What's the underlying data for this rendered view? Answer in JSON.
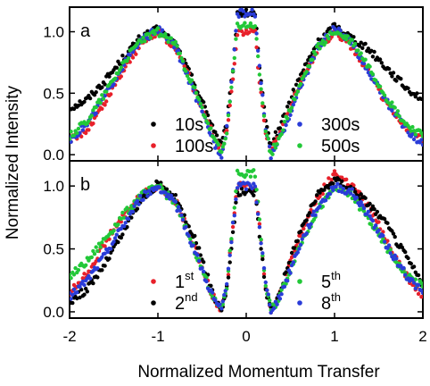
{
  "chart_data": [
    {
      "type": "scatter",
      "panel": "a",
      "xlabel": "Normalized Momentum Transfer",
      "ylabel": "Normalized Intensity",
      "xlim": [
        -2,
        2
      ],
      "ylim": [
        -0.05,
        1.2
      ],
      "xticks": [
        "-2",
        "-1",
        "0",
        "1",
        "2"
      ],
      "yticks": [
        "0.0",
        "0.5",
        "1.0"
      ],
      "series": [
        {
          "name": "10s",
          "color": "#000000",
          "x": [
            -2.0,
            -1.8,
            -1.6,
            -1.4,
            -1.2,
            -1.0,
            -0.8,
            -0.6,
            -0.45,
            -0.35,
            -0.28,
            -0.22,
            -0.15,
            -0.1,
            0.1,
            0.15,
            0.22,
            0.28,
            0.35,
            0.45,
            0.6,
            0.8,
            1.0,
            1.2,
            1.4,
            1.6,
            1.8,
            2.0
          ],
          "y": [
            0.38,
            0.45,
            0.6,
            0.78,
            0.95,
            1.02,
            0.9,
            0.6,
            0.35,
            0.18,
            0.08,
            0.25,
            0.7,
            1.15,
            1.15,
            0.7,
            0.25,
            0.08,
            0.18,
            0.35,
            0.62,
            0.9,
            1.05,
            0.95,
            0.85,
            0.7,
            0.55,
            0.45
          ]
        },
        {
          "name": "100s",
          "color": "#e8202a",
          "x": [
            -2.0,
            -1.8,
            -1.6,
            -1.4,
            -1.2,
            -1.0,
            -0.8,
            -0.6,
            -0.45,
            -0.35,
            -0.28,
            -0.22,
            -0.15,
            -0.1,
            0.1,
            0.15,
            0.22,
            0.28,
            0.35,
            0.45,
            0.6,
            0.8,
            1.0,
            1.2,
            1.4,
            1.6,
            1.8,
            2.0
          ],
          "y": [
            0.12,
            0.2,
            0.42,
            0.68,
            0.9,
            1.0,
            0.88,
            0.55,
            0.3,
            0.12,
            0.03,
            0.2,
            0.6,
            1.0,
            1.0,
            0.6,
            0.2,
            0.03,
            0.12,
            0.3,
            0.56,
            0.85,
            1.0,
            0.88,
            0.65,
            0.4,
            0.22,
            0.12
          ]
        },
        {
          "name": "300s",
          "color": "#2a3cd8",
          "x": [
            -2.0,
            -1.8,
            -1.6,
            -1.4,
            -1.2,
            -1.0,
            -0.8,
            -0.6,
            -0.45,
            -0.35,
            -0.28,
            -0.22,
            -0.15,
            -0.1,
            0.1,
            0.15,
            0.22,
            0.28,
            0.35,
            0.45,
            0.6,
            0.8,
            1.0,
            1.2,
            1.4,
            1.6,
            1.8,
            2.0
          ],
          "y": [
            0.12,
            0.25,
            0.48,
            0.72,
            0.92,
            1.02,
            0.88,
            0.52,
            0.25,
            0.08,
            0.0,
            0.22,
            0.7,
            1.15,
            1.15,
            0.7,
            0.22,
            0.0,
            0.08,
            0.25,
            0.52,
            0.86,
            1.03,
            0.9,
            0.66,
            0.42,
            0.22,
            0.08
          ]
        },
        {
          "name": "500s",
          "color": "#22c838",
          "x": [
            -2.0,
            -1.8,
            -1.6,
            -1.4,
            -1.2,
            -1.0,
            -0.8,
            -0.6,
            -0.45,
            -0.35,
            -0.28,
            -0.22,
            -0.15,
            -0.1,
            0.1,
            0.15,
            0.22,
            0.28,
            0.35,
            0.45,
            0.6,
            0.8,
            1.0,
            1.2,
            1.4,
            1.6,
            1.8,
            2.0
          ],
          "y": [
            0.15,
            0.28,
            0.5,
            0.74,
            0.93,
            1.0,
            0.9,
            0.55,
            0.28,
            0.1,
            0.01,
            0.2,
            0.65,
            1.05,
            1.05,
            0.65,
            0.2,
            0.01,
            0.1,
            0.28,
            0.55,
            0.86,
            1.0,
            0.92,
            0.7,
            0.45,
            0.25,
            0.15
          ]
        }
      ],
      "legend": [
        {
          "label": "10s",
          "color": "#000000",
          "position": "bottom-left-upper"
        },
        {
          "label": "100s",
          "color": "#e8202a",
          "position": "bottom-left-lower"
        },
        {
          "label": "300s",
          "color": "#2a3cd8",
          "position": "bottom-right-upper"
        },
        {
          "label": "500s",
          "color": "#22c838",
          "position": "bottom-right-lower"
        }
      ]
    },
    {
      "type": "scatter",
      "panel": "b",
      "xlabel": "Normalized Momentum Transfer",
      "ylabel": "Normalized Intensity",
      "xlim": [
        -2,
        2
      ],
      "ylim": [
        -0.05,
        1.2
      ],
      "xticks": [
        "-2",
        "-1",
        "0",
        "1",
        "2"
      ],
      "yticks": [
        "0.0",
        "0.5",
        "1.0"
      ],
      "series": [
        {
          "name": "1st",
          "color": "#e8202a",
          "x": [
            -2.0,
            -1.8,
            -1.6,
            -1.4,
            -1.2,
            -1.0,
            -0.8,
            -0.6,
            -0.45,
            -0.35,
            -0.28,
            -0.22,
            -0.15,
            -0.1,
            0.1,
            0.15,
            0.22,
            0.28,
            0.35,
            0.45,
            0.6,
            0.8,
            1.0,
            1.2,
            1.4,
            1.6,
            1.8,
            2.0
          ],
          "y": [
            0.15,
            0.3,
            0.55,
            0.75,
            0.92,
            1.0,
            0.88,
            0.55,
            0.25,
            0.08,
            0.02,
            0.2,
            0.7,
            1.0,
            1.0,
            0.7,
            0.2,
            0.02,
            0.08,
            0.28,
            0.58,
            0.9,
            1.1,
            1.0,
            0.82,
            0.55,
            0.3,
            0.12
          ]
        },
        {
          "name": "2nd",
          "color": "#000000",
          "x": [
            -2.0,
            -1.8,
            -1.6,
            -1.4,
            -1.2,
            -1.0,
            -0.8,
            -0.6,
            -0.45,
            -0.35,
            -0.28,
            -0.22,
            -0.15,
            -0.1,
            0.1,
            0.15,
            0.22,
            0.28,
            0.35,
            0.45,
            0.6,
            0.8,
            1.0,
            1.2,
            1.4,
            1.6,
            1.8,
            2.0
          ],
          "y": [
            0.08,
            0.18,
            0.38,
            0.62,
            0.88,
            1.02,
            0.9,
            0.62,
            0.3,
            0.1,
            0.02,
            0.18,
            0.62,
            0.95,
            0.95,
            0.62,
            0.18,
            0.02,
            0.1,
            0.32,
            0.62,
            0.92,
            1.05,
            0.98,
            0.85,
            0.68,
            0.45,
            0.22
          ]
        },
        {
          "name": "5th",
          "color": "#22c838",
          "x": [
            -2.0,
            -1.8,
            -1.6,
            -1.4,
            -1.2,
            -1.0,
            -0.8,
            -0.6,
            -0.45,
            -0.35,
            -0.28,
            -0.22,
            -0.15,
            -0.1,
            0.1,
            0.15,
            0.22,
            0.28,
            0.35,
            0.45,
            0.6,
            0.8,
            1.0,
            1.2,
            1.4,
            1.6,
            1.8,
            2.0
          ],
          "y": [
            0.28,
            0.4,
            0.58,
            0.76,
            0.92,
            1.0,
            0.86,
            0.52,
            0.25,
            0.08,
            0.02,
            0.2,
            0.72,
            1.1,
            1.1,
            0.72,
            0.2,
            0.02,
            0.08,
            0.25,
            0.52,
            0.8,
            0.98,
            0.92,
            0.72,
            0.5,
            0.3,
            0.2
          ]
        },
        {
          "name": "8th",
          "color": "#2a3cd8",
          "x": [
            -2.0,
            -1.8,
            -1.6,
            -1.4,
            -1.2,
            -1.0,
            -0.8,
            -0.6,
            -0.45,
            -0.35,
            -0.28,
            -0.22,
            -0.15,
            -0.1,
            0.1,
            0.15,
            0.22,
            0.28,
            0.35,
            0.45,
            0.6,
            0.8,
            1.0,
            1.2,
            1.4,
            1.6,
            1.8,
            2.0
          ],
          "y": [
            0.12,
            0.25,
            0.45,
            0.68,
            0.9,
            1.0,
            0.86,
            0.52,
            0.24,
            0.08,
            0.02,
            0.22,
            0.68,
            1.0,
            1.0,
            0.68,
            0.22,
            0.02,
            0.08,
            0.24,
            0.52,
            0.82,
            1.0,
            0.95,
            0.75,
            0.52,
            0.3,
            0.15
          ]
        }
      ],
      "legend": [
        {
          "label": "1",
          "sup": "st",
          "color": "#e8202a",
          "position": "bottom-left-upper"
        },
        {
          "label": "2",
          "sup": "nd",
          "color": "#000000",
          "position": "bottom-left-lower"
        },
        {
          "label": "5",
          "sup": "th",
          "color": "#22c838",
          "position": "bottom-right-upper"
        },
        {
          "label": "8",
          "sup": "th",
          "color": "#2a3cd8",
          "position": "bottom-right-lower"
        }
      ]
    }
  ]
}
